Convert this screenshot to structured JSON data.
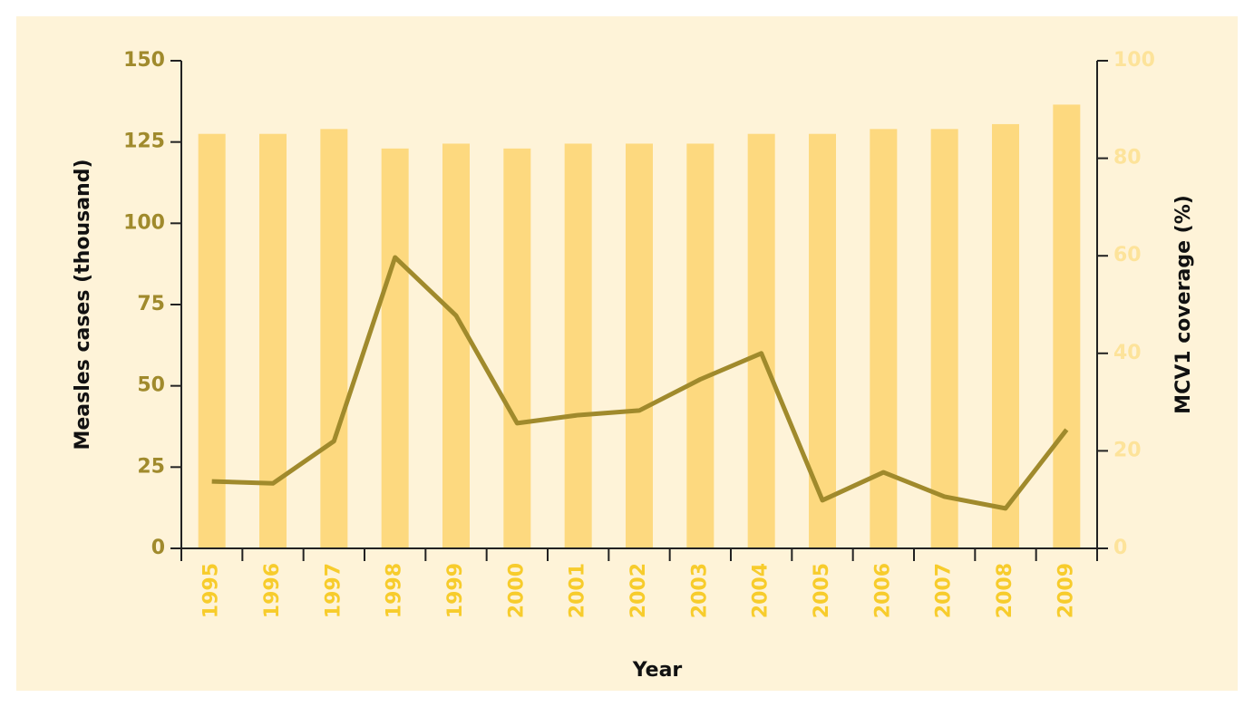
{
  "chart_data": {
    "type": "bar_line",
    "xlabel": "Year",
    "ylabel": "Measles cases (thousand)",
    "y2label": "MCV1 coverage (%)",
    "categories": [
      "1995",
      "1996",
      "1997",
      "1998",
      "1999",
      "2000",
      "2001",
      "2002",
      "2003",
      "2004",
      "2005",
      "2006",
      "2007",
      "2008",
      "2009"
    ],
    "series": [
      {
        "name": "MCV1 coverage",
        "type": "bar",
        "axis": "y2",
        "color": "#fdd97f",
        "values": [
          85,
          85,
          86,
          82,
          83,
          82,
          83,
          83,
          83,
          85,
          85,
          86,
          86,
          87,
          91
        ]
      },
      {
        "name": "Measles cases",
        "type": "line",
        "axis": "y",
        "color": "#a08a2c",
        "values": [
          20.6,
          20,
          33,
          89.5,
          71.6,
          38.5,
          41,
          42.4,
          52,
          60,
          14.8,
          23.4,
          15.9,
          12.3,
          36.5
        ]
      }
    ],
    "ylim": [
      0,
      150
    ],
    "yticks": [
      0,
      25,
      50,
      75,
      100,
      125,
      150
    ],
    "y2lim": [
      0,
      100
    ],
    "y2ticks": [
      0,
      20,
      40,
      60,
      80,
      100
    ]
  }
}
